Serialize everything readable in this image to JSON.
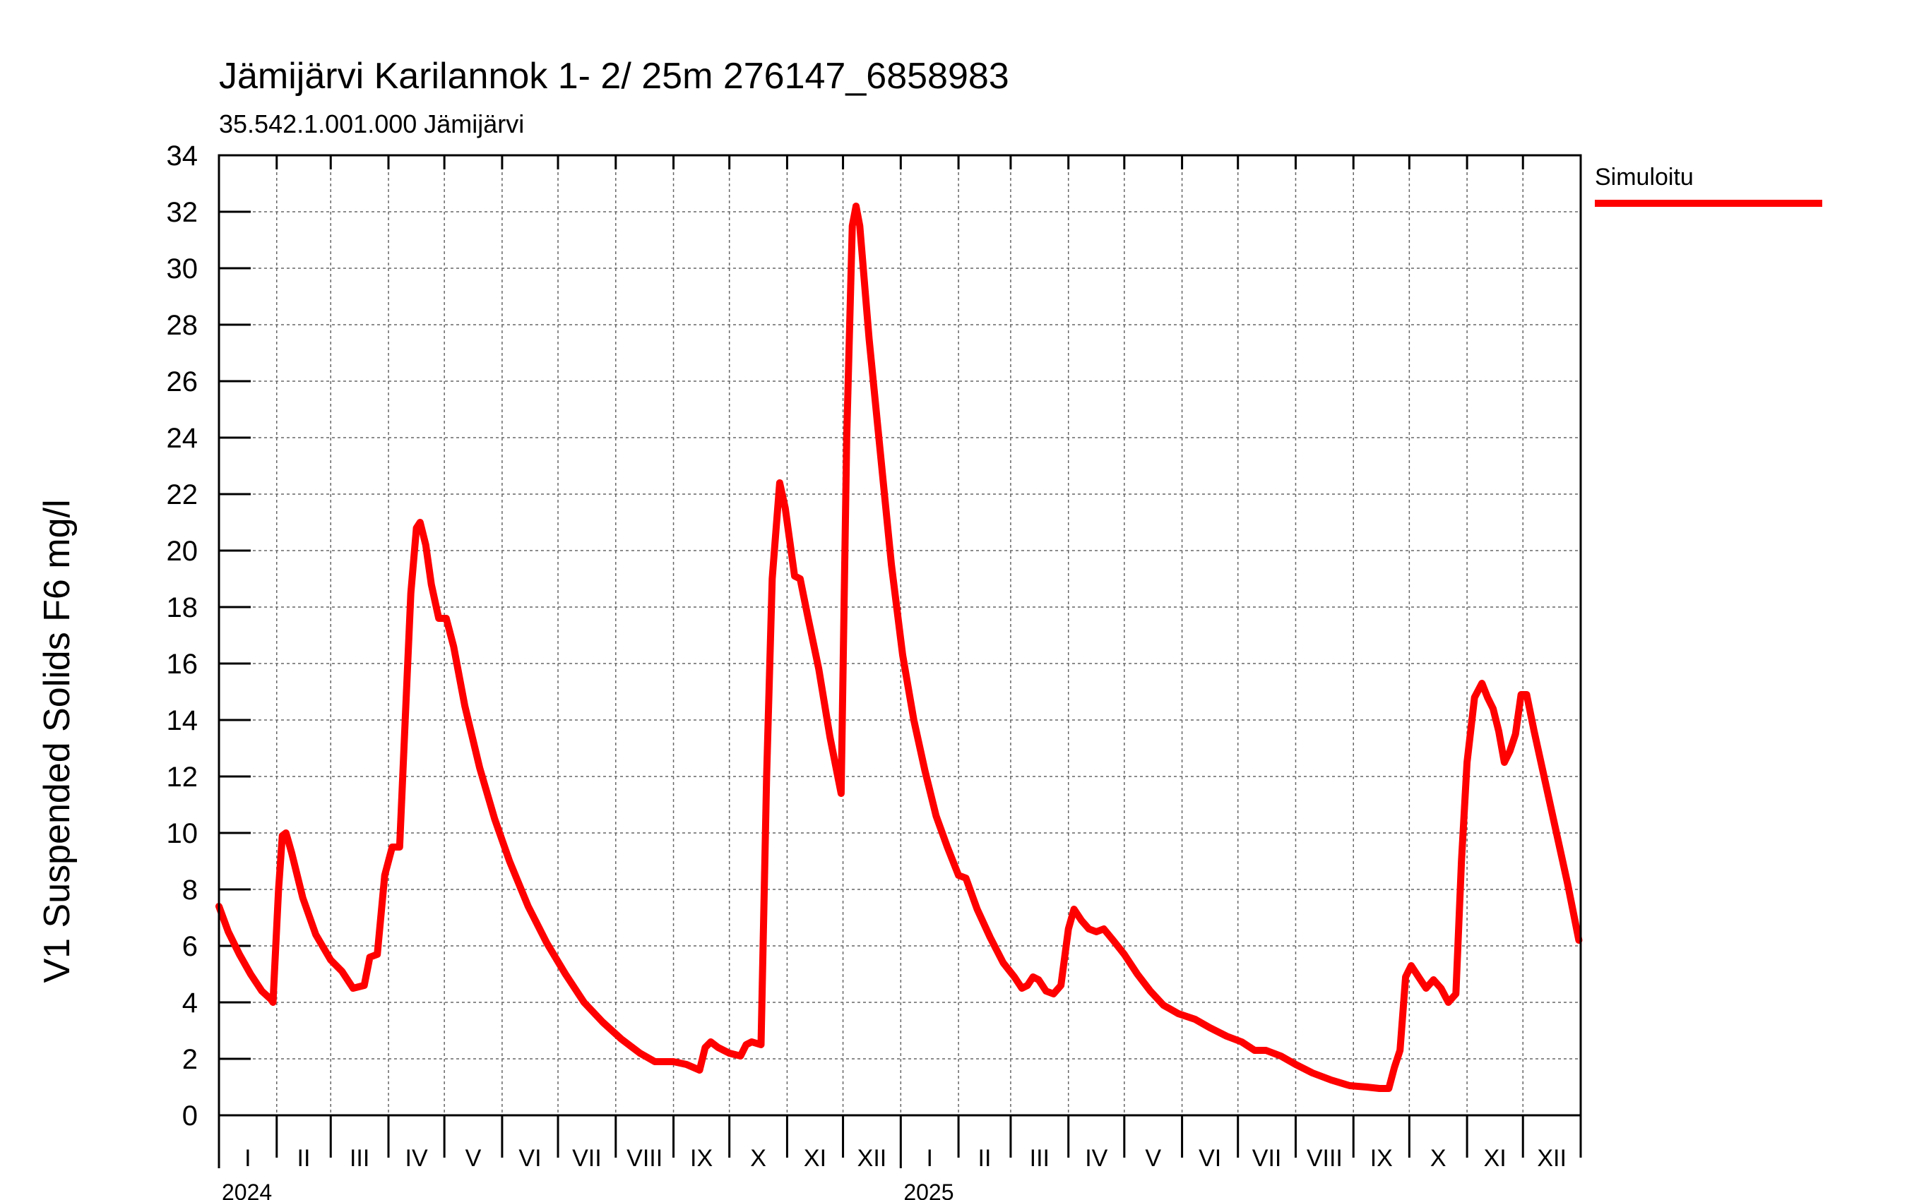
{
  "chart_data": {
    "type": "line",
    "title": "Jämijärvi Karilannok 1- 2/ 25m  276147_6858983",
    "subtitle": "35.542.1.001.000 Jämijärvi",
    "ylabel": "V1 Suspended Solids F6 mg/l",
    "xlabel": "",
    "ylim": [
      0,
      34
    ],
    "yticks": [
      0,
      2,
      4,
      6,
      8,
      10,
      12,
      14,
      16,
      18,
      20,
      22,
      24,
      26,
      28,
      30,
      32,
      34
    ],
    "xlim": [
      "2024-01-01",
      "2025-12-31"
    ],
    "grid": true,
    "legend_position": "top-right",
    "month_labels": [
      "I",
      "II",
      "III",
      "IV",
      "V",
      "VI",
      "VII",
      "VIII",
      "IX",
      "X",
      "XI",
      "XII"
    ],
    "years": [
      "2024",
      "2025"
    ],
    "series": [
      {
        "name": "Simuloitu",
        "color": "#ff0000",
        "points": [
          [
            "2024-01-01",
            7.4
          ],
          [
            "2024-01-06",
            6.5
          ],
          [
            "2024-01-12",
            5.7
          ],
          [
            "2024-01-18",
            5.0
          ],
          [
            "2024-01-24",
            4.4
          ],
          [
            "2024-01-29",
            4.1
          ],
          [
            "2024-01-30",
            4.0
          ],
          [
            "2024-02-02",
            8.0
          ],
          [
            "2024-02-04",
            9.9
          ],
          [
            "2024-02-06",
            10.0
          ],
          [
            "2024-02-09",
            9.3
          ],
          [
            "2024-02-15",
            7.7
          ],
          [
            "2024-02-22",
            6.4
          ],
          [
            "2024-03-01",
            5.5
          ],
          [
            "2024-03-07",
            5.1
          ],
          [
            "2024-03-13",
            4.5
          ],
          [
            "2024-03-19",
            4.6
          ],
          [
            "2024-03-22",
            5.6
          ],
          [
            "2024-03-26",
            5.7
          ],
          [
            "2024-03-30",
            8.5
          ],
          [
            "2024-04-03",
            9.5
          ],
          [
            "2024-04-07",
            9.5
          ],
          [
            "2024-04-10",
            14.0
          ],
          [
            "2024-04-13",
            18.5
          ],
          [
            "2024-04-16",
            20.8
          ],
          [
            "2024-04-18",
            21.0
          ],
          [
            "2024-04-21",
            20.2
          ],
          [
            "2024-04-24",
            18.8
          ],
          [
            "2024-04-28",
            17.6
          ],
          [
            "2024-05-02",
            17.6
          ],
          [
            "2024-05-06",
            16.6
          ],
          [
            "2024-05-12",
            14.5
          ],
          [
            "2024-05-20",
            12.3
          ],
          [
            "2024-05-28",
            10.5
          ],
          [
            "2024-06-05",
            9.0
          ],
          [
            "2024-06-15",
            7.4
          ],
          [
            "2024-06-25",
            6.1
          ],
          [
            "2024-07-05",
            5.0
          ],
          [
            "2024-07-15",
            4.0
          ],
          [
            "2024-07-25",
            3.3
          ],
          [
            "2024-08-04",
            2.7
          ],
          [
            "2024-08-14",
            2.2
          ],
          [
            "2024-08-22",
            1.9
          ],
          [
            "2024-09-01",
            1.9
          ],
          [
            "2024-09-08",
            1.8
          ],
          [
            "2024-09-15",
            1.6
          ],
          [
            "2024-09-18",
            2.4
          ],
          [
            "2024-09-21",
            2.6
          ],
          [
            "2024-09-25",
            2.4
          ],
          [
            "2024-10-01",
            2.2
          ],
          [
            "2024-10-07",
            2.1
          ],
          [
            "2024-10-10",
            2.5
          ],
          [
            "2024-10-13",
            2.6
          ],
          [
            "2024-10-18",
            2.5
          ],
          [
            "2024-10-21",
            12.0
          ],
          [
            "2024-10-24",
            19.0
          ],
          [
            "2024-10-28",
            22.4
          ],
          [
            "2024-10-31",
            21.5
          ],
          [
            "2024-11-05",
            19.1
          ],
          [
            "2024-11-08",
            19.0
          ],
          [
            "2024-11-12",
            17.7
          ],
          [
            "2024-11-18",
            15.8
          ],
          [
            "2024-11-24",
            13.4
          ],
          [
            "2024-11-30",
            11.4
          ],
          [
            "2024-12-03",
            24.0
          ],
          [
            "2024-12-06",
            31.5
          ],
          [
            "2024-12-08",
            32.2
          ],
          [
            "2024-12-10",
            31.5
          ],
          [
            "2024-12-15",
            27.5
          ],
          [
            "2024-12-21",
            23.5
          ],
          [
            "2024-12-27",
            19.5
          ],
          [
            "2025-01-02",
            16.3
          ],
          [
            "2025-01-08",
            14.0
          ],
          [
            "2025-01-14",
            12.2
          ],
          [
            "2025-01-20",
            10.6
          ],
          [
            "2025-01-26",
            9.5
          ],
          [
            "2025-02-01",
            8.5
          ],
          [
            "2025-02-05",
            8.4
          ],
          [
            "2025-02-11",
            7.3
          ],
          [
            "2025-02-18",
            6.3
          ],
          [
            "2025-02-25",
            5.4
          ],
          [
            "2025-03-03",
            4.9
          ],
          [
            "2025-03-07",
            4.5
          ],
          [
            "2025-03-10",
            4.6
          ],
          [
            "2025-03-13",
            4.9
          ],
          [
            "2025-03-16",
            4.8
          ],
          [
            "2025-03-20",
            4.4
          ],
          [
            "2025-03-24",
            4.3
          ],
          [
            "2025-03-28",
            4.6
          ],
          [
            "2025-04-01",
            6.6
          ],
          [
            "2025-04-04",
            7.3
          ],
          [
            "2025-04-08",
            6.9
          ],
          [
            "2025-04-12",
            6.6
          ],
          [
            "2025-04-16",
            6.5
          ],
          [
            "2025-04-20",
            6.6
          ],
          [
            "2025-04-25",
            6.2
          ],
          [
            "2025-05-01",
            5.7
          ],
          [
            "2025-05-08",
            5.0
          ],
          [
            "2025-05-15",
            4.4
          ],
          [
            "2025-05-22",
            3.9
          ],
          [
            "2025-05-30",
            3.6
          ],
          [
            "2025-06-08",
            3.4
          ],
          [
            "2025-06-16",
            3.1
          ],
          [
            "2025-06-25",
            2.8
          ],
          [
            "2025-07-03",
            2.6
          ],
          [
            "2025-07-10",
            2.3
          ],
          [
            "2025-07-16",
            2.3
          ],
          [
            "2025-07-24",
            2.1
          ],
          [
            "2025-08-01",
            1.8
          ],
          [
            "2025-08-10",
            1.5
          ],
          [
            "2025-08-20",
            1.25
          ],
          [
            "2025-08-30",
            1.05
          ],
          [
            "2025-09-08",
            1.0
          ],
          [
            "2025-09-15",
            0.95
          ],
          [
            "2025-09-20",
            0.95
          ],
          [
            "2025-09-23",
            1.7
          ],
          [
            "2025-09-26",
            2.3
          ],
          [
            "2025-09-29",
            4.9
          ],
          [
            "2025-10-02",
            5.3
          ],
          [
            "2025-10-06",
            4.9
          ],
          [
            "2025-10-10",
            4.5
          ],
          [
            "2025-10-14",
            4.8
          ],
          [
            "2025-10-18",
            4.5
          ],
          [
            "2025-10-22",
            4.0
          ],
          [
            "2025-10-26",
            4.3
          ],
          [
            "2025-10-29",
            9.0
          ],
          [
            "2025-11-01",
            12.5
          ],
          [
            "2025-11-05",
            14.8
          ],
          [
            "2025-11-09",
            15.3
          ],
          [
            "2025-11-12",
            14.8
          ],
          [
            "2025-11-15",
            14.4
          ],
          [
            "2025-11-18",
            13.6
          ],
          [
            "2025-11-21",
            12.5
          ],
          [
            "2025-11-24",
            12.9
          ],
          [
            "2025-11-27",
            13.5
          ],
          [
            "2025-11-30",
            14.9
          ],
          [
            "2025-12-03",
            14.9
          ],
          [
            "2025-12-07",
            13.6
          ],
          [
            "2025-12-13",
            11.8
          ],
          [
            "2025-12-19",
            10.0
          ],
          [
            "2025-12-25",
            8.2
          ],
          [
            "2025-12-31",
            6.2
          ]
        ]
      }
    ]
  }
}
